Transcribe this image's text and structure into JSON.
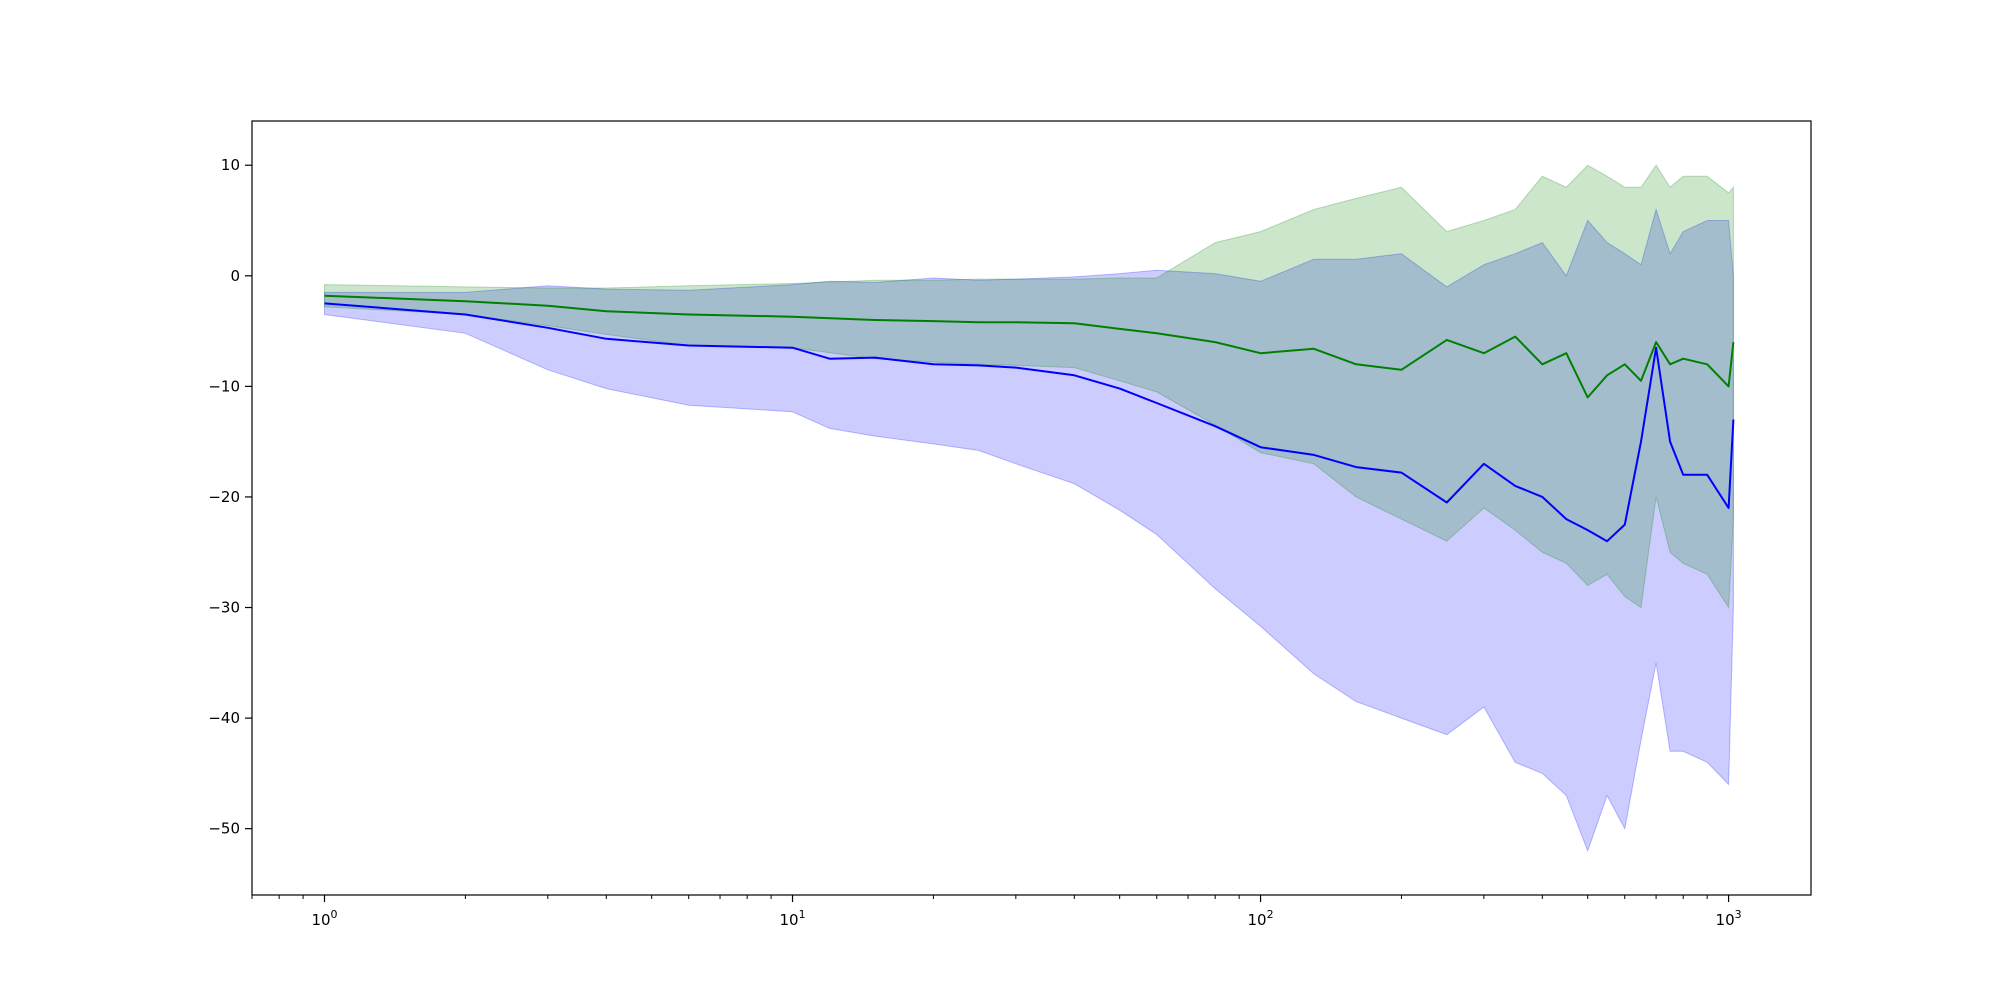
{
  "chart_data": {
    "type": "line",
    "title": "",
    "xlabel": "",
    "ylabel": "",
    "xscale": "log",
    "xlim": [
      0.7,
      1500
    ],
    "ylim": [
      -56,
      14
    ],
    "grid": false,
    "x_ticks": [
      {
        "value": 1,
        "base": "10",
        "exp": "0"
      },
      {
        "value": 10,
        "base": "10",
        "exp": "1"
      },
      {
        "value": 100,
        "base": "10",
        "exp": "2"
      },
      {
        "value": 1000,
        "base": "10",
        "exp": "3"
      }
    ],
    "y_ticks": [
      {
        "value": 10,
        "label": "10"
      },
      {
        "value": 0,
        "label": "0"
      },
      {
        "value": -10,
        "label": "−10"
      },
      {
        "value": -20,
        "label": "−20"
      },
      {
        "value": -30,
        "label": "−30"
      },
      {
        "value": -40,
        "label": "−40"
      },
      {
        "value": -50,
        "label": "−50"
      }
    ],
    "series": [
      {
        "color": "#0000ff",
        "band_color": "#0000ff",
        "band_opacity": 0.2,
        "x": [
          1,
          2,
          3,
          4,
          6,
          10,
          12,
          15,
          20,
          25,
          30,
          40,
          50,
          60,
          80,
          100,
          130,
          160,
          200,
          250,
          300,
          350,
          400,
          450,
          500,
          550,
          600,
          650,
          700,
          750,
          800,
          900,
          1000,
          1024
        ],
        "mean": [
          -2.5,
          -3.5,
          -4.7,
          -5.7,
          -6.3,
          -6.5,
          -7.5,
          -7.4,
          -8.0,
          -8.1,
          -8.3,
          -9.0,
          -10.2,
          -11.5,
          -13.6,
          -15.5,
          -16.2,
          -17.3,
          -17.8,
          -20.5,
          -17.0,
          -19.0,
          -20.0,
          -22.0,
          -23.0,
          -24.0,
          -22.5,
          -15.0,
          -6.5,
          -15.0,
          -18.0,
          -18.0,
          -21.0,
          -13.0
        ],
        "upper": [
          -1.5,
          -1.5,
          -0.9,
          -1.2,
          -1.3,
          -0.8,
          -0.5,
          -0.6,
          -0.2,
          -0.4,
          -0.3,
          -0.1,
          0.2,
          0.5,
          0.2,
          -0.5,
          1.5,
          1.5,
          2.0,
          -1.0,
          1.0,
          2.0,
          3.0,
          0.0,
          5.0,
          3.0,
          2.0,
          1.0,
          6.0,
          2.0,
          4.0,
          5.0,
          5.0,
          0.0
        ],
        "lower": [
          -3.5,
          -5.2,
          -8.5,
          -10.2,
          -11.7,
          -12.3,
          -13.8,
          -14.5,
          -15.2,
          -15.8,
          -17.0,
          -18.8,
          -21.2,
          -23.4,
          -28.3,
          -31.7,
          -36.0,
          -38.5,
          -40.0,
          -41.5,
          -39.0,
          -44.0,
          -45.0,
          -47.0,
          -52.0,
          -47.0,
          -50.0,
          -42.0,
          -35.0,
          -43.0,
          -43.0,
          -44.0,
          -46.0,
          -30.0
        ]
      },
      {
        "color": "#008000",
        "band_color": "#008000",
        "band_opacity": 0.2,
        "x": [
          1,
          2,
          3,
          4,
          6,
          10,
          15,
          20,
          25,
          30,
          40,
          50,
          60,
          80,
          100,
          130,
          160,
          200,
          250,
          300,
          350,
          400,
          450,
          500,
          550,
          600,
          650,
          700,
          750,
          800,
          900,
          1000,
          1024
        ],
        "mean": [
          -1.8,
          -2.3,
          -2.7,
          -3.2,
          -3.5,
          -3.7,
          -4.0,
          -4.1,
          -4.2,
          -4.2,
          -4.3,
          -4.8,
          -5.2,
          -6.0,
          -7.0,
          -6.6,
          -8.0,
          -8.5,
          -5.8,
          -7.0,
          -5.5,
          -8.0,
          -7.0,
          -11.0,
          -9.0,
          -8.0,
          -9.5,
          -6.0,
          -8.0,
          -7.5,
          -8.0,
          -10.0,
          -6.0
        ],
        "upper": [
          -0.8,
          -1.0,
          -1.1,
          -1.1,
          -0.9,
          -0.7,
          -0.4,
          -0.4,
          -0.3,
          -0.3,
          -0.3,
          -0.2,
          -0.2,
          3.0,
          4.0,
          6.0,
          7.0,
          8.0,
          4.0,
          5.0,
          6.0,
          9.0,
          8.0,
          10.0,
          9.0,
          8.0,
          8.0,
          10.0,
          8.0,
          9.0,
          9.0,
          7.5,
          8.0
        ],
        "lower": [
          -2.8,
          -3.5,
          -4.5,
          -5.3,
          -6.3,
          -6.5,
          -7.5,
          -7.8,
          -8.0,
          -8.1,
          -8.3,
          -9.5,
          -10.5,
          -13.5,
          -16.0,
          -17.0,
          -20.0,
          -22.0,
          -24.0,
          -21.0,
          -23.0,
          -25.0,
          -26.0,
          -28.0,
          -27.0,
          -29.0,
          -30.0,
          -20.0,
          -25.0,
          -26.0,
          -27.0,
          -30.0,
          -22.0
        ]
      }
    ]
  }
}
